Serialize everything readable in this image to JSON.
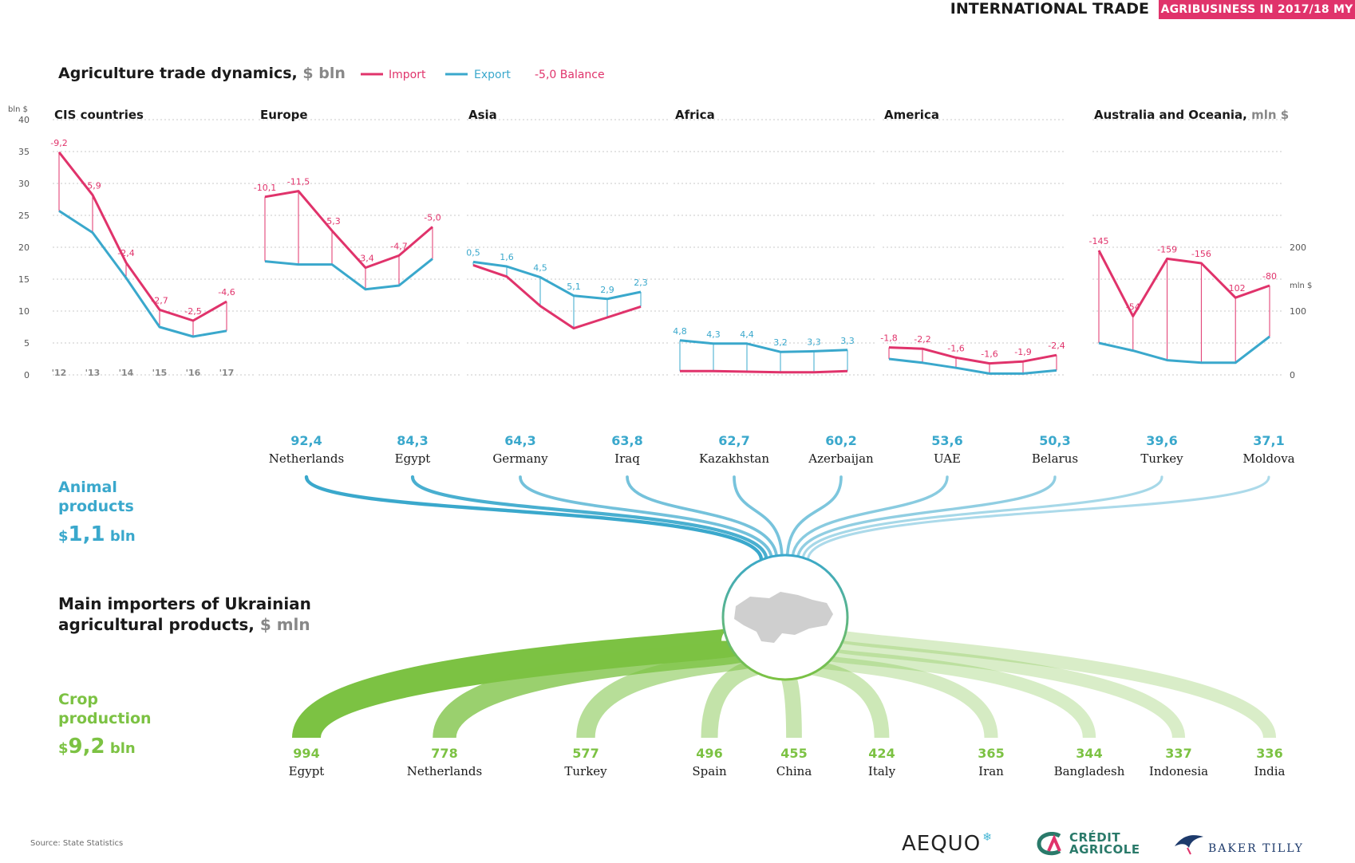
{
  "header": {
    "section": "INTERNATIONAL TRADE",
    "band": "AGRIBUSINESS IN 2017/18 MY"
  },
  "colors": {
    "import": "#e0336b",
    "export": "#3aa8cc",
    "animal": "#3aa8cc",
    "crop": "#7cc243",
    "axis_text": "#555555",
    "grid": "#c8c8c8"
  },
  "chart_data": {
    "type": "line",
    "title": "Agriculture trade dynamics,",
    "title_unit": "$ bln",
    "legend": {
      "import": "Import",
      "export": "Export",
      "balance_sample": "-5,0",
      "balance": "Balance"
    },
    "y_unit": "bln $",
    "y_ticks": [
      0,
      5,
      10,
      15,
      20,
      25,
      30,
      35,
      40
    ],
    "ylim": [
      0,
      40
    ],
    "x_ticks": [
      "'12",
      "'13",
      "'14",
      "'15",
      "'16",
      "'17"
    ],
    "grid": true,
    "regions": [
      {
        "name": "CIS countries",
        "import": [
          34.9,
          28.2,
          17.6,
          10.2,
          8.5,
          11.5
        ],
        "export": [
          25.7,
          22.3,
          15.2,
          7.5,
          6.0,
          6.9
        ],
        "balance": [
          "-9,2",
          "-5,9",
          "-2,4",
          "-2,7",
          "-2,5",
          "-4,6"
        ],
        "label_series": "import"
      },
      {
        "name": "Europe",
        "import": [
          27.9,
          28.8,
          22.6,
          16.8,
          18.7,
          23.2
        ],
        "export": [
          17.8,
          17.3,
          17.3,
          13.4,
          14.0,
          18.2
        ],
        "balance": [
          "-10,1",
          "-11,5",
          "-5,3",
          "-3,4",
          "-4,7",
          "-5,0"
        ],
        "label_series": "import"
      },
      {
        "name": "Asia",
        "import": [
          17.2,
          15.4,
          10.8,
          7.3,
          9.0,
          10.7
        ],
        "export": [
          17.7,
          17.0,
          15.3,
          12.4,
          11.9,
          13.0
        ],
        "balance": [
          "0,5",
          "1,6",
          "4,5",
          "5,1",
          "2,9",
          "2,3"
        ],
        "label_series": "export"
      },
      {
        "name": "Africa",
        "import": [
          0.6,
          0.6,
          0.5,
          0.4,
          0.4,
          0.6
        ],
        "export": [
          5.4,
          4.9,
          4.9,
          3.6,
          3.7,
          3.9
        ],
        "balance": [
          "4,8",
          "4,3",
          "4,4",
          "3,2",
          "3,3",
          "3,3"
        ],
        "label_series": "export"
      },
      {
        "name": "America",
        "import": [
          4.3,
          4.1,
          2.7,
          1.8,
          2.1,
          3.1
        ],
        "export": [
          2.5,
          1.9,
          1.1,
          0.2,
          0.2,
          0.7
        ],
        "balance": [
          "-1,8",
          "-2,2",
          "-1,6",
          "-1,6",
          "-1,9",
          "-2,4"
        ],
        "label_series": "import"
      },
      {
        "name": "Australia and Oceania,",
        "name_unit": "mln $",
        "y_unit": "mln $",
        "y_ticks": [
          0,
          100,
          200
        ],
        "ylim": [
          0,
          400
        ],
        "import": [
          195,
          92,
          182,
          175,
          121,
          140
        ],
        "export": [
          50,
          38,
          23,
          19,
          19,
          60
        ],
        "balance": [
          "-145",
          "-54",
          "-159",
          "-156",
          "-102",
          "-80"
        ],
        "label_series": "import"
      }
    ]
  },
  "importers": {
    "title_line1": "Main importers of Ukrainian",
    "title_line2": "agricultural products,",
    "title_unit": "$ mln",
    "animal": {
      "label_line1": "Animal",
      "label_line2": "products",
      "total_prefix": "$",
      "total_value": "1,1",
      "total_unit": "bln",
      "partners": [
        {
          "value": "92,4",
          "country": "Netherlands"
        },
        {
          "value": "84,3",
          "country": "Egypt"
        },
        {
          "value": "64,3",
          "country": "Germany"
        },
        {
          "value": "63,8",
          "country": "Iraq"
        },
        {
          "value": "62,7",
          "country": "Kazakhstan"
        },
        {
          "value": "60,2",
          "country": "Azerbaijan"
        },
        {
          "value": "53,6",
          "country": "UAE"
        },
        {
          "value": "50,3",
          "country": "Belarus"
        },
        {
          "value": "39,6",
          "country": "Turkey"
        },
        {
          "value": "37,1",
          "country": "Moldova"
        }
      ]
    },
    "crop": {
      "label_line1": "Crop",
      "label_line2": "production",
      "total_prefix": "$",
      "total_value": "9,2",
      "total_unit": "bln",
      "partners": [
        {
          "value": "994",
          "country": "Egypt"
        },
        {
          "value": "778",
          "country": "Netherlands"
        },
        {
          "value": "577",
          "country": "Turkey"
        },
        {
          "value": "496",
          "country": "Spain"
        },
        {
          "value": "455",
          "country": "China"
        },
        {
          "value": "424",
          "country": "Italy"
        },
        {
          "value": "365",
          "country": "Iran"
        },
        {
          "value": "344",
          "country": "Bangladesh"
        },
        {
          "value": "337",
          "country": "Indonesia"
        },
        {
          "value": "336",
          "country": "India"
        }
      ]
    }
  },
  "footer": {
    "source": "Source: State Statistics",
    "logo_aequo": "AEQUO",
    "logo_ca_line1": "CRÉDIT",
    "logo_ca_line2": "AGRICOLE",
    "logo_bt": "BAKER TILLY"
  }
}
